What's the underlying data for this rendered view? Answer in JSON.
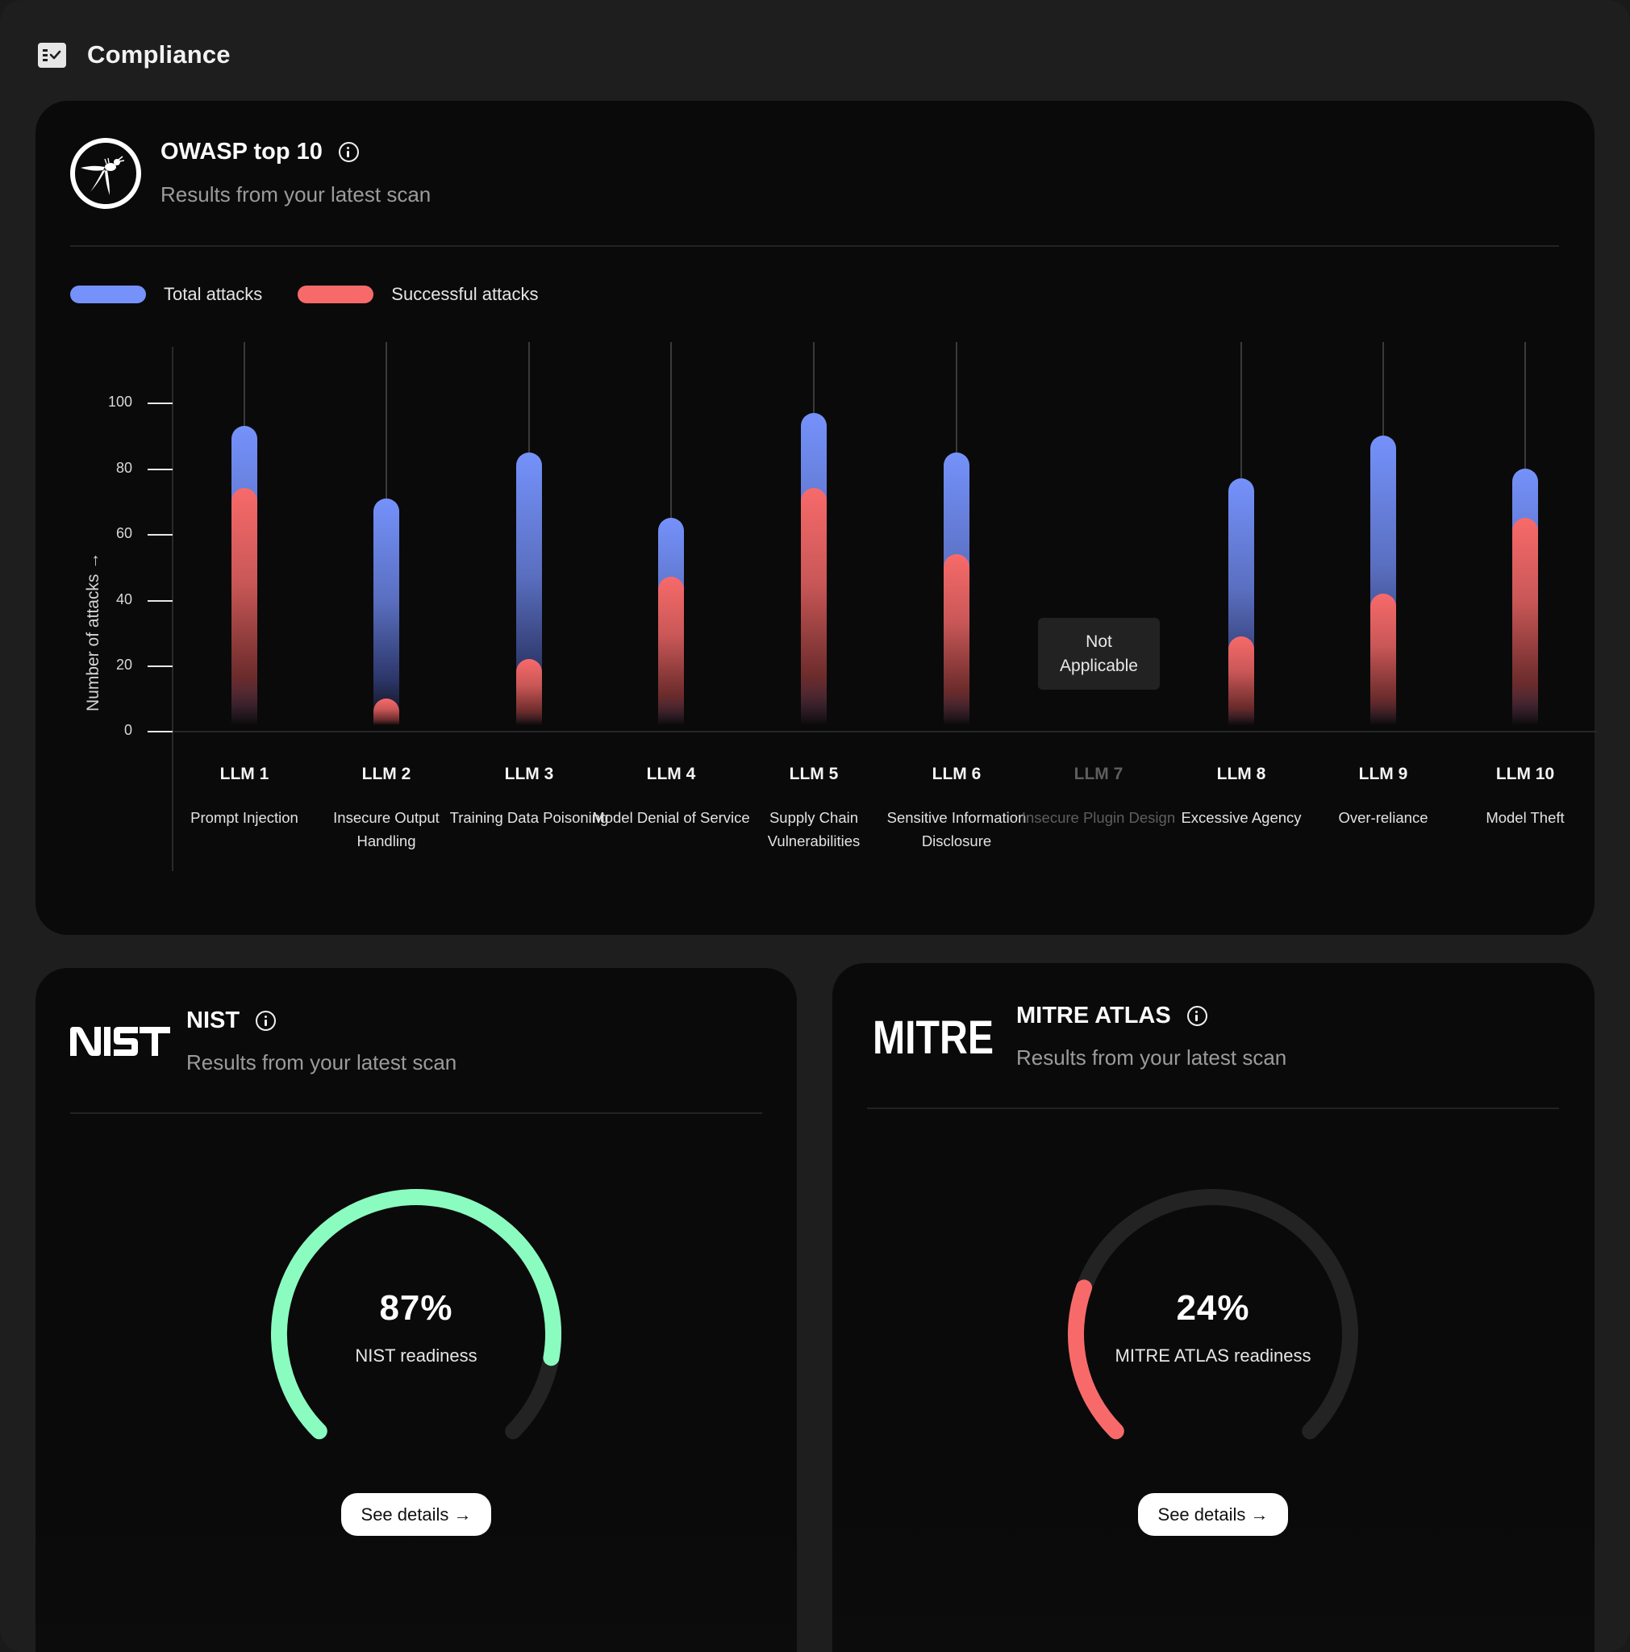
{
  "page": {
    "title": "Compliance",
    "icon": "checklist-icon"
  },
  "owasp": {
    "title": "OWASP top 10",
    "subtitle": "Results from your latest scan",
    "logo": "owasp-wasp-logo",
    "legend": {
      "total": "Total attacks",
      "successful": "Successful attacks"
    },
    "colors": {
      "total": "#7592fb",
      "successful": "#f86a6a"
    },
    "y_axis_title": "Number of attacks →",
    "y_ticks": [
      "100",
      "80",
      "60",
      "40",
      "20",
      "0"
    ],
    "not_applicable_line1": "Not",
    "not_applicable_line2": "Applicable",
    "columns": [
      {
        "label": "LLM 1",
        "desc": "Prompt Injection"
      },
      {
        "label": "LLM 2",
        "desc": "Insecure Output Handling"
      },
      {
        "label": "LLM 3",
        "desc": "Training Data Poisoning"
      },
      {
        "label": "LLM 4",
        "desc": "Model Denial of Service"
      },
      {
        "label": "LLM 5",
        "desc": "Supply Chain Vulnerabilities"
      },
      {
        "label": "LLM 6",
        "desc": "Sensitive Information Disclosure"
      },
      {
        "label": "LLM 7",
        "desc": "Insecure Plugin Design"
      },
      {
        "label": "LLM 8",
        "desc": "Excessive Agency"
      },
      {
        "label": "LLM 9",
        "desc": "Over-reliance"
      },
      {
        "label": "LLM 10",
        "desc": "Model Theft"
      }
    ]
  },
  "nist": {
    "title": "NIST",
    "subtitle": "Results from your latest scan",
    "logo_text": "NIST",
    "value": "87%",
    "label": "NIST readiness",
    "percent": 87,
    "color": "#8bfcc0",
    "button": "See details →"
  },
  "mitre": {
    "title": "MITRE ATLAS",
    "subtitle": "Results from your latest scan",
    "logo_text": "MITRE",
    "value": "24%",
    "label": "MITRE ATLAS readiness",
    "percent": 24,
    "color": "#f86a6a",
    "button": "See details →"
  },
  "chart_data": [
    {
      "type": "bar",
      "title": "OWASP top 10",
      "subtitle": "Results from your latest scan",
      "categories": [
        "LLM 1",
        "LLM 2",
        "LLM 3",
        "LLM 4",
        "LLM 5",
        "LLM 6",
        "LLM 7",
        "LLM 8",
        "LLM 9",
        "LLM 10"
      ],
      "category_descriptions": [
        "Prompt Injection",
        "Insecure Output Handling",
        "Training Data Poisoning",
        "Model Denial of Service",
        "Supply Chain Vulnerabilities",
        "Sensitive Information Disclosure",
        "Insecure Plugin Design",
        "Excessive Agency",
        "Over-reliance",
        "Model Theft"
      ],
      "series": [
        {
          "name": "Total attacks",
          "color": "#7592fb",
          "values": [
            93,
            71,
            85,
            65,
            97,
            85,
            null,
            77,
            90,
            80
          ]
        },
        {
          "name": "Successful attacks",
          "color": "#f86a6a",
          "values": [
            74,
            10,
            22,
            47,
            74,
            54,
            null,
            29,
            42,
            65
          ]
        }
      ],
      "annotations": [
        {
          "category": "LLM 7",
          "text": "Not Applicable"
        }
      ],
      "xlabel": "",
      "ylabel": "Number of attacks →",
      "ylim": [
        0,
        100
      ],
      "yticks": [
        0,
        20,
        40,
        60,
        80,
        100
      ],
      "grid": false,
      "legend_position": "top-left"
    },
    {
      "type": "pie",
      "title": "NIST readiness",
      "categories": [
        "Ready",
        "Remaining"
      ],
      "values": [
        87,
        13
      ],
      "style": "gauge-270deg"
    },
    {
      "type": "pie",
      "title": "MITRE ATLAS readiness",
      "categories": [
        "Ready",
        "Remaining"
      ],
      "values": [
        24,
        76
      ],
      "style": "gauge-270deg"
    }
  ]
}
